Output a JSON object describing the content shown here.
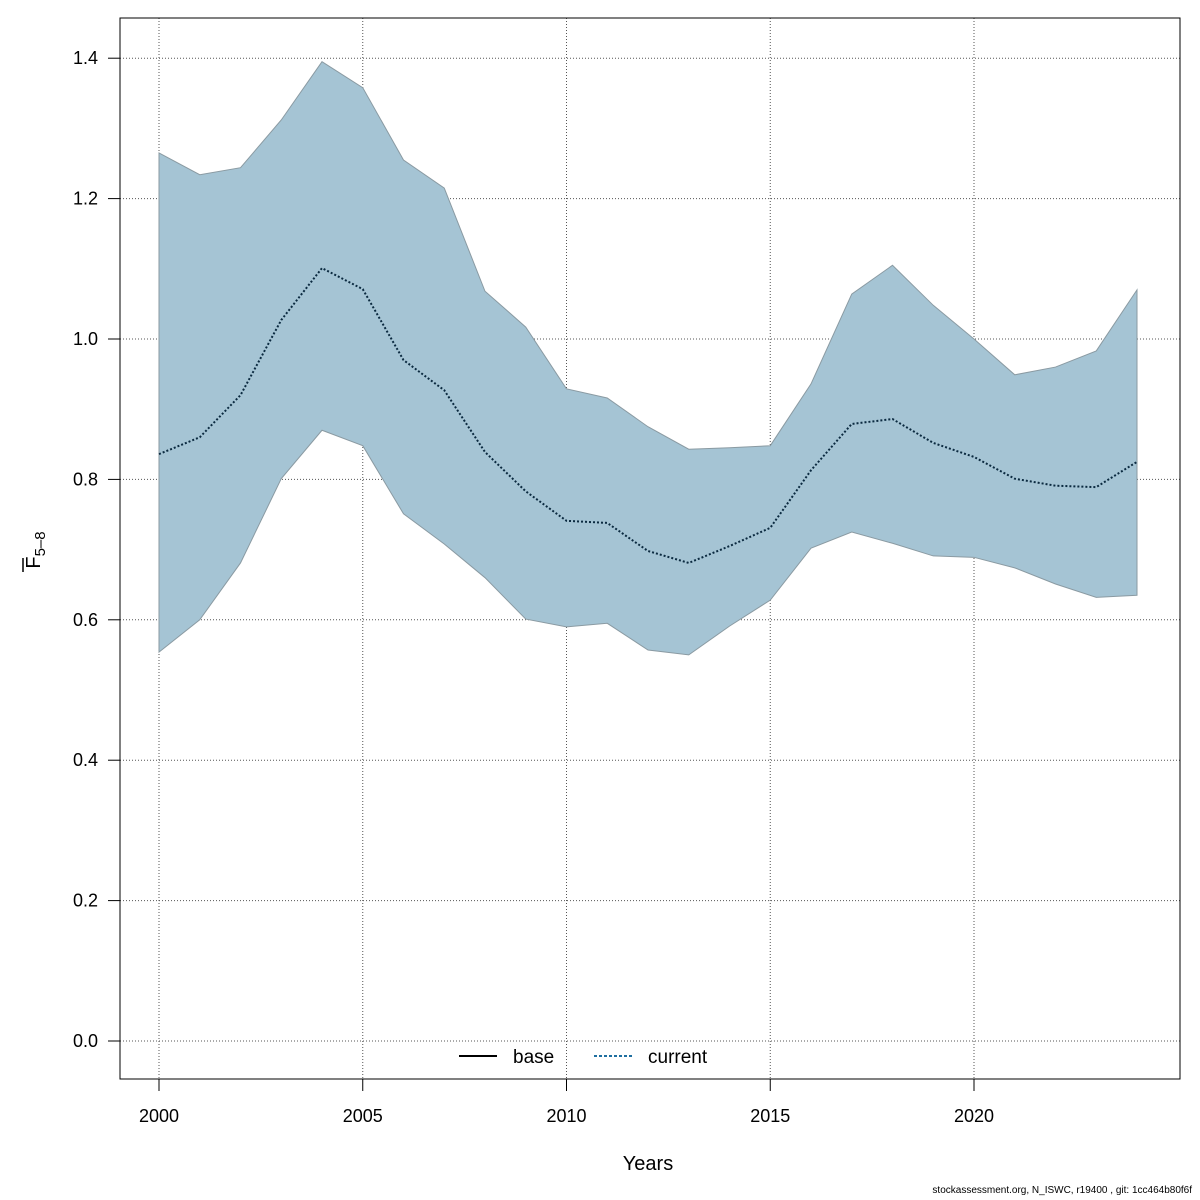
{
  "chart_data": {
    "type": "area",
    "xlabel": "Years",
    "ylabel": "F",
    "ylabel_overline": true,
    "ylabel_subscript": "5–8",
    "xlim": [
      1999,
      2025
    ],
    "ylim": [
      -0.05,
      1.45
    ],
    "xticks": [
      2000,
      2005,
      2010,
      2015,
      2020
    ],
    "yticks": [
      "0.0",
      "0.2",
      "0.4",
      "0.6",
      "0.8",
      "1.0",
      "1.2",
      "1.4"
    ],
    "grid": true,
    "legend": {
      "placement": "bottom",
      "entries": [
        {
          "label": "base",
          "style": "solid",
          "color": "#000000"
        },
        {
          "label": "current",
          "style": "dotted",
          "color": "#1f6fa0"
        }
      ]
    },
    "band_color": "#a5c4d4",
    "band_border_color": "#8a9aa2",
    "x": [
      2000,
      2001,
      2002,
      2003,
      2004,
      2005,
      2006,
      2007,
      2008,
      2009,
      2010,
      2011,
      2012,
      2013,
      2014,
      2015,
      2016,
      2017,
      2018,
      2019,
      2020,
      2021,
      2022,
      2023,
      2024
    ],
    "upper": [
      1.265,
      1.234,
      1.244,
      1.312,
      1.395,
      1.358,
      1.255,
      1.215,
      1.068,
      1.017,
      0.929,
      0.916,
      0.875,
      0.843,
      0.845,
      0.848,
      0.936,
      1.064,
      1.105,
      1.048,
      1.0,
      0.949,
      0.96,
      0.983,
      1.07
    ],
    "series": [
      {
        "name": "current",
        "values": [
          0.836,
          0.86,
          0.92,
          1.027,
          1.101,
          1.071,
          0.97,
          0.927,
          0.839,
          0.783,
          0.741,
          0.738,
          0.698,
          0.681,
          0.705,
          0.731,
          0.813,
          0.879,
          0.886,
          0.852,
          0.832,
          0.801,
          0.791,
          0.789,
          0.825
        ]
      }
    ],
    "lower": [
      0.554,
      0.6,
      0.681,
      0.801,
      0.87,
      0.848,
      0.751,
      0.708,
      0.66,
      0.601,
      0.59,
      0.595,
      0.557,
      0.55,
      0.591,
      0.628,
      0.702,
      0.725,
      0.709,
      0.691,
      0.689,
      0.674,
      0.651,
      0.632,
      0.635
    ]
  },
  "footer": "stockassessment.org, N_ISWC, r19400 , git: 1cc464b80f6f"
}
